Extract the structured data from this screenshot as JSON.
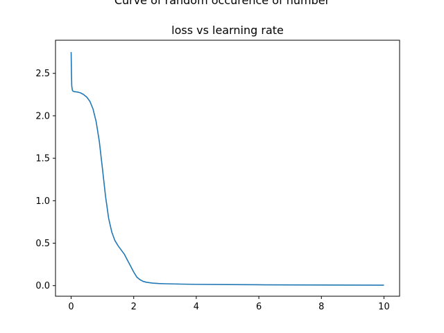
{
  "chart_data": {
    "type": "line",
    "suptitle": "Curve of random occurence of number",
    "title": "loss vs learning rate",
    "xlabel": "",
    "ylabel": "",
    "xlim": [
      -0.5,
      10.5
    ],
    "ylim": [
      -0.125,
      2.89
    ],
    "xticks": [
      0,
      2,
      4,
      6,
      8,
      10
    ],
    "yticks": [
      0.0,
      0.5,
      1.0,
      1.5,
      2.0,
      2.5
    ],
    "xtick_labels": [
      "0",
      "2",
      "4",
      "6",
      "8",
      "10"
    ],
    "ytick_labels": [
      "0.0",
      "0.5",
      "1.0",
      "1.5",
      "2.0",
      "2.5"
    ],
    "grid": false,
    "line_color": "#1f77b4",
    "series": [
      {
        "x": [
          0,
          0.01,
          0.02,
          0.04,
          0.06,
          0.1,
          0.2,
          0.3,
          0.4,
          0.5,
          0.6,
          0.7,
          0.8,
          0.9,
          1.0,
          1.1,
          1.2,
          1.3,
          1.4,
          1.5,
          1.6,
          1.7,
          1.8,
          1.9,
          2.0,
          2.1,
          2.2,
          2.3,
          2.4,
          2.5,
          2.6,
          2.8,
          3.0,
          3.5,
          4.0,
          5.0,
          6.0,
          7.0,
          8.0,
          9.0,
          10.0
        ],
        "y": [
          2.75,
          2.5,
          2.35,
          2.3,
          2.29,
          2.285,
          2.28,
          2.27,
          2.25,
          2.22,
          2.17,
          2.08,
          1.93,
          1.7,
          1.38,
          1.05,
          0.79,
          0.63,
          0.53,
          0.47,
          0.42,
          0.37,
          0.3,
          0.23,
          0.16,
          0.1,
          0.07,
          0.05,
          0.04,
          0.035,
          0.03,
          0.025,
          0.022,
          0.018,
          0.015,
          0.012,
          0.01,
          0.008,
          0.007,
          0.006,
          0.005
        ]
      }
    ]
  }
}
